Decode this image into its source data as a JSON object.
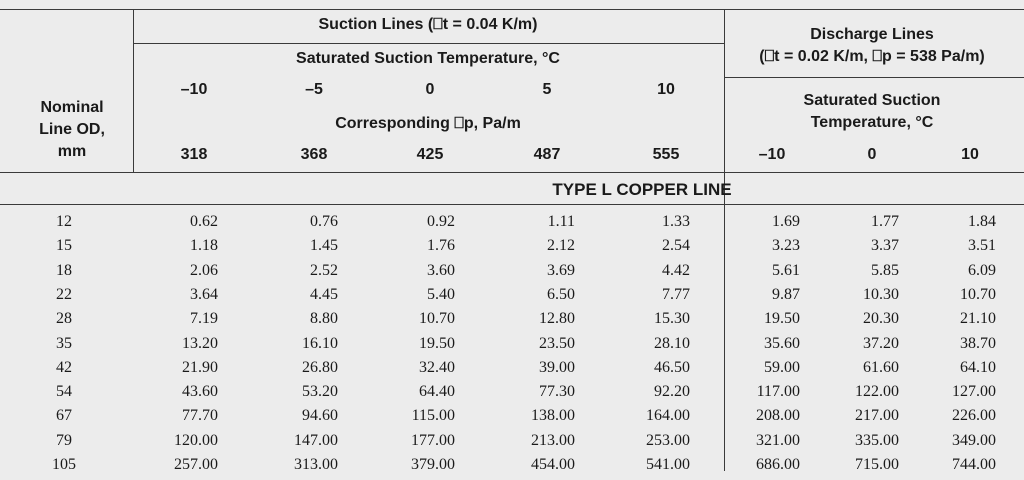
{
  "header": {
    "row_label_line1": "Nominal",
    "row_label_line2": "Line OD,",
    "row_label_line3": "mm",
    "suction_title": "Suction Lines (⎕t = 0.04 K/m)",
    "suction_subtitle": "Saturated Suction Temperature, °C",
    "suction_temps": [
      "–10",
      "–5",
      "0",
      "5",
      "10"
    ],
    "corresponding_label": "Corresponding ⎕p, Pa/m",
    "suction_dp": [
      "318",
      "368",
      "425",
      "487",
      "555"
    ],
    "discharge_title": "Discharge Lines",
    "discharge_subtitle": "(⎕t = 0.02 K/m, ⎕p = 538 Pa/m)",
    "discharge_temp_label1": "Saturated Suction",
    "discharge_temp_label2": "Temperature, °C",
    "discharge_temps": [
      "–10",
      "0",
      "10"
    ],
    "section_title": "TYPE L COPPER LINE"
  },
  "rows": [
    {
      "od": "12",
      "vals": [
        "0.62",
        "0.76",
        "0.92",
        "1.11",
        "1.33",
        "1.69",
        "1.77",
        "1.84"
      ]
    },
    {
      "od": "15",
      "vals": [
        "1.18",
        "1.45",
        "1.76",
        "2.12",
        "2.54",
        "3.23",
        "3.37",
        "3.51"
      ]
    },
    {
      "od": "18",
      "vals": [
        "2.06",
        "2.52",
        "3.60",
        "3.69",
        "4.42",
        "5.61",
        "5.85",
        "6.09"
      ]
    },
    {
      "od": "22",
      "vals": [
        "3.64",
        "4.45",
        "5.40",
        "6.50",
        "7.77",
        "9.87",
        "10.30",
        "10.70"
      ]
    },
    {
      "od": "28",
      "vals": [
        "7.19",
        "8.80",
        "10.70",
        "12.80",
        "15.30",
        "19.50",
        "20.30",
        "21.10"
      ]
    },
    {
      "od": "35",
      "vals": [
        "13.20",
        "16.10",
        "19.50",
        "23.50",
        "28.10",
        "35.60",
        "37.20",
        "38.70"
      ]
    },
    {
      "od": "42",
      "vals": [
        "21.90",
        "26.80",
        "32.40",
        "39.00",
        "46.50",
        "59.00",
        "61.60",
        "64.10"
      ]
    },
    {
      "od": "54",
      "vals": [
        "43.60",
        "53.20",
        "64.40",
        "77.30",
        "92.20",
        "117.00",
        "122.00",
        "127.00"
      ]
    },
    {
      "od": "67",
      "vals": [
        "77.70",
        "94.60",
        "115.00",
        "138.00",
        "164.00",
        "208.00",
        "217.00",
        "226.00"
      ]
    },
    {
      "od": "79",
      "vals": [
        "120.00",
        "147.00",
        "177.00",
        "213.00",
        "253.00",
        "321.00",
        "335.00",
        "349.00"
      ]
    },
    {
      "od": "105",
      "vals": [
        "257.00",
        "313.00",
        "379.00",
        "454.00",
        "541.00",
        "686.00",
        "715.00",
        "744.00"
      ]
    }
  ]
}
